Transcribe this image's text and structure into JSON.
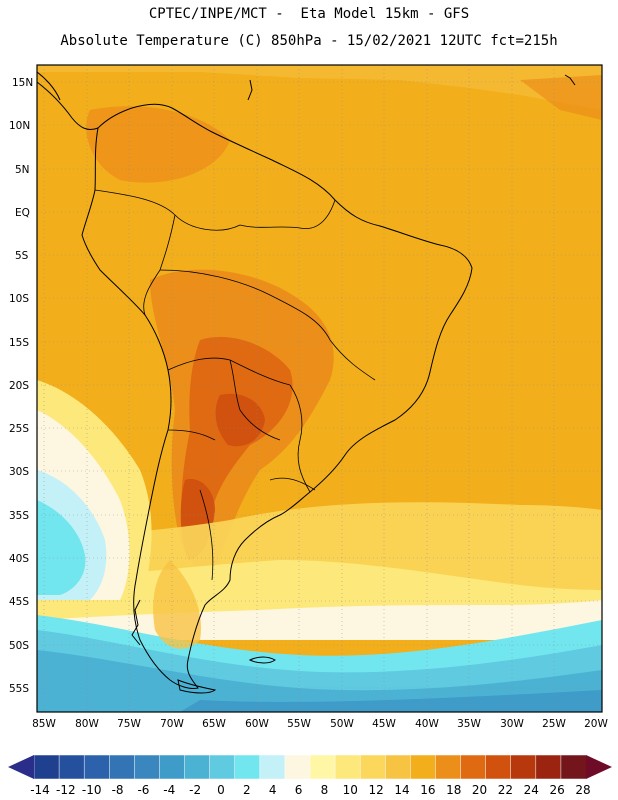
{
  "header": {
    "line1": "CPTEC/INPE/MCT -  Eta Model 15km - GFS",
    "line2": "Absolute Temperature (C) 850hPa - 15/02/2021 12UTC fct=215h"
  },
  "map": {
    "lat_labels": [
      "15N",
      "10N",
      "5N",
      "EQ",
      "5S",
      "10S",
      "15S",
      "20S",
      "25S",
      "30S",
      "35S",
      "40S",
      "45S",
      "50S",
      "55S"
    ],
    "lon_labels": [
      "85W",
      "80W",
      "75W",
      "70W",
      "65W",
      "60W",
      "55W",
      "50W",
      "45W",
      "40W",
      "35W",
      "30W",
      "25W",
      "20W"
    ]
  },
  "colorbar": {
    "labels": [
      "-14",
      "-12",
      "-10",
      "-8",
      "-6",
      "-4",
      "-2",
      "0",
      "2",
      "4",
      "6",
      "8",
      "10",
      "12",
      "14",
      "16",
      "18",
      "20",
      "22",
      "24",
      "26",
      "28"
    ],
    "colors": [
      "#1f3f8f",
      "#25509d",
      "#2c62ab",
      "#3374b5",
      "#3a86bf",
      "#3f9bc8",
      "#4bb2d4",
      "#5fcae0",
      "#72e6ee",
      "#c4f1f7",
      "#fdf6e0",
      "#fff7a6",
      "#fde87b",
      "#fbd75b",
      "#f7c343",
      "#f2ae1b",
      "#ec8f1a",
      "#e06a12",
      "#d1510f",
      "#b8380d",
      "#9b2411",
      "#74151b"
    ],
    "left_arrow_color": "#2a2e8a",
    "right_arrow_color": "#6e0b28"
  }
}
